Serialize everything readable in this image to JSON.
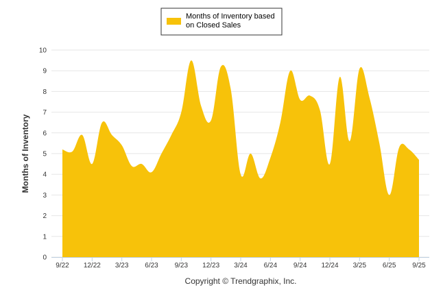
{
  "chart_data": {
    "type": "area",
    "title": "",
    "xlabel": "",
    "ylabel": "Months of Inventory",
    "ylim": [
      0,
      10
    ],
    "yticks": [
      0,
      1,
      2,
      3,
      4,
      5,
      6,
      7,
      8,
      9,
      10
    ],
    "grid": true,
    "legend_position": "top-center",
    "series": [
      {
        "name_lines": [
          "Months of Inventory based",
          "on Closed Sales"
        ],
        "color": "#F7C20A",
        "values": [
          5.2,
          5.1,
          5.9,
          4.5,
          6.5,
          5.9,
          5.4,
          4.4,
          4.5,
          4.1,
          5.0,
          5.9,
          7.0,
          9.5,
          7.3,
          6.6,
          9.2,
          8.1,
          4.0,
          5.0,
          3.8,
          4.8,
          6.5,
          9.0,
          7.6,
          7.8,
          7.1,
          4.5,
          8.7,
          5.6,
          9.1,
          7.7,
          5.5,
          3.0,
          5.3,
          5.2,
          4.7
        ]
      }
    ],
    "x_tick_labels": [
      "9/22",
      "12/22",
      "3/23",
      "6/23",
      "9/23",
      "12/23",
      "3/24",
      "6/24",
      "9/24",
      "12/24",
      "3/25",
      "6/25",
      "9/25"
    ],
    "x_tick_indices": [
      0,
      3,
      6,
      9,
      12,
      15,
      18,
      21,
      24,
      27,
      30,
      33,
      36
    ]
  },
  "footer": {
    "copyright": "Copyright © Trendgraphix, Inc."
  },
  "colors": {
    "area_fill": "#F7C20A",
    "grid": "#E6E6E6",
    "axis": "#C0D0E0",
    "text": "#333333"
  }
}
